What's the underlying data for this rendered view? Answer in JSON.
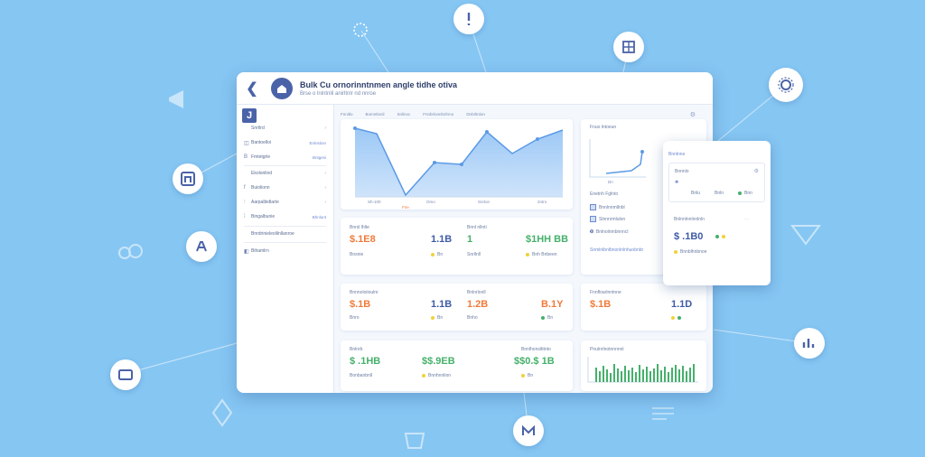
{
  "window": {
    "title": "Bulk Cu ornorinntnmen angle tidhe otiva",
    "subtitle": "Brse o lnlntnlil anirltnlr nd nnroe"
  },
  "sidebar": {
    "items": [
      {
        "label": "Snrtlrd",
        "badge": "",
        "icon": "",
        "chevron": "›"
      },
      {
        "label": "Bantoelloi",
        "badge": "Enlostion",
        "icon": "◫",
        "chevron": ""
      },
      {
        "label": "Fmtetgrle",
        "badge": "Bntgesi",
        "icon": "B",
        "chevron": ""
      },
      {
        "label": "Ekolonlind",
        "badge": "",
        "icon": "",
        "chevron": "›"
      },
      {
        "label": "Buiolionn",
        "badge": "",
        "icon": "f",
        "chevron": "›"
      },
      {
        "label": "Aarpalbidlarte",
        "badge": "",
        "icon": "⫶",
        "chevron": "›"
      },
      {
        "label": "Bingalbunie",
        "badge": "Bhnlunt",
        "icon": "⁞",
        "chevron": ""
      },
      {
        "label": "Bnrdrinieleolilnllanroe",
        "badge": "",
        "icon": "",
        "chevron": ""
      },
      {
        "label": "Bihamlrn",
        "badge": "",
        "icon": "◧",
        "chevron": ""
      }
    ]
  },
  "main": {
    "tabs": [
      "Fnnitlo",
      "Bomntlonil",
      "Snlinoc",
      "Fnnbrlonnlnrlrmo",
      "Dnbrltnlon"
    ],
    "chart": {
      "xticks": [
        "Sh-100",
        "Omo",
        "Snrlon",
        "2ntro"
      ],
      "bottom_label": "Fne"
    },
    "cards": [
      {
        "l1": "Bnrsl lhlte",
        "v1": "$.1E8",
        "s1": "Bnsnie",
        "v2": "1.1B",
        "s2": "Bn"
      },
      {
        "l1": "Bnnl nllnti",
        "v1": "1",
        "s1": "Snrllnll",
        "v2": "$1HH BB",
        "s2": "Bnh Bnbeen"
      },
      {
        "l1": "Bnnnoloiioulnr",
        "v1": "$.1B",
        "s1": "Bnro",
        "v2": "1.1B",
        "s2": "Bn"
      },
      {
        "l1": "Bnlnrlonll",
        "v1": "1.2B",
        "s1": "Bnho",
        "v2": "B.1Y",
        "s2": "Bn"
      },
      {
        "l1": "Bnlnrb",
        "v1": "$ .1HB",
        "s1": "Bonbanbnll",
        "v2": "$$.9EB",
        "s2": "Bnnhnnlion"
      },
      {
        "l1": "Bnnlhonsltitnto",
        "v1": "$$0.$ 1B",
        "s1": "Bn",
        "v2": "",
        "s2": ""
      }
    ],
    "right_top": {
      "label": "Fnuo lntoeun",
      "axis_label": "Dn",
      "list_title": "Enetnh Fglnto",
      "rows": [
        "Bnnlnnmllnbl",
        "Slnnnrmlulon",
        "Bnlnolnmbnnncl"
      ],
      "footer": "Snmlnlbnlbnonlnlnhuobnbr"
    },
    "right_mid": {
      "label": "Fnnfloarlnntnne",
      "v1": "$.1B",
      "v2": "1.1D"
    },
    "right_bot": {
      "label": "Pnulnrlnotnnnnnl"
    }
  },
  "float_panel": {
    "header": "Bnnlnne",
    "sub": "Bnnnlo",
    "chip1": "Bnlu",
    "chip2": "Bnln",
    "chip3": "Bnn",
    "title": "Bnlnnlnnlnnlnln",
    "value": "$ .1B0",
    "value_sub": "Bnnblhnbnoe"
  }
}
